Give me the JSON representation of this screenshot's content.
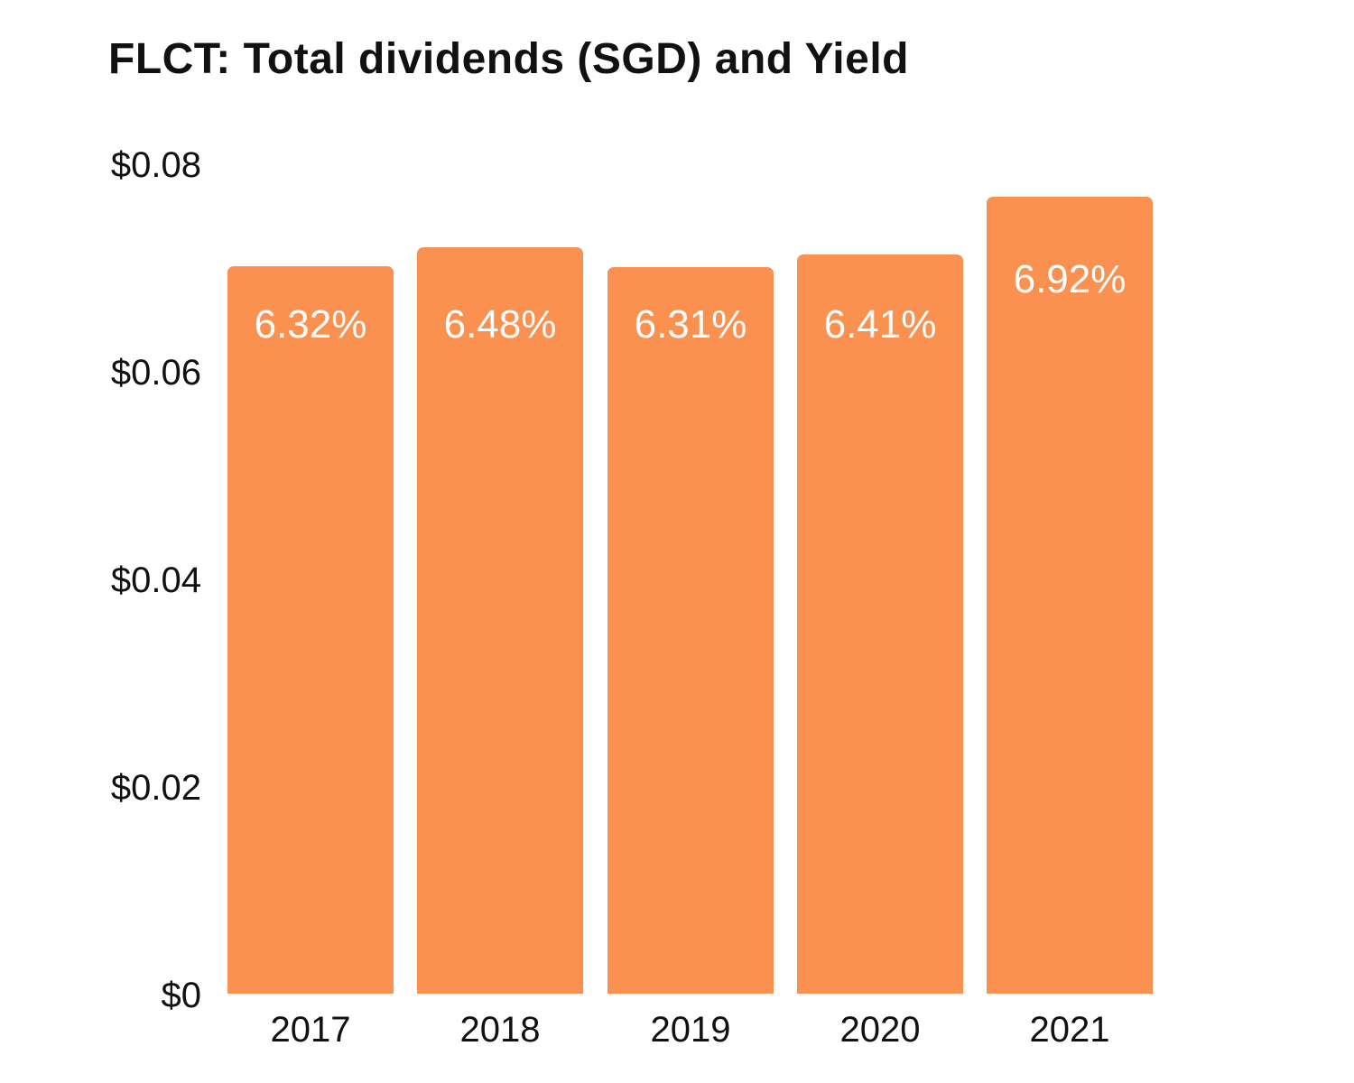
{
  "chart_data": {
    "type": "bar",
    "title": "FLCT: Total dividends (SGD) and Yield",
    "categories": [
      "2017",
      "2018",
      "2019",
      "2020",
      "2021"
    ],
    "series": [
      {
        "name": "Total dividends (SGD)",
        "values": [
          0.0701,
          0.0719,
          0.07,
          0.0712,
          0.0768
        ]
      },
      {
        "name": "Yield (%)",
        "values": [
          6.32,
          6.48,
          6.31,
          6.41,
          6.92
        ]
      }
    ],
    "bar_labels": [
      "6.32%",
      "6.48%",
      "6.31%",
      "6.41%",
      "6.92%"
    ],
    "y_ticks": [
      {
        "label": "$0",
        "value": 0
      },
      {
        "label": "$0.02",
        "value": 0.02
      },
      {
        "label": "$0.04",
        "value": 0.04
      },
      {
        "label": "$0.06",
        "value": 0.06
      },
      {
        "label": "$0.08",
        "value": 0.08
      }
    ],
    "ylim": [
      0,
      0.08
    ],
    "xlabel": "",
    "ylabel": "",
    "grid": false,
    "legend": "none",
    "colors": {
      "bar": "#FA9150",
      "bar_label_text": "#FFFFFF",
      "axis_text": "#111111",
      "title_text": "#111111",
      "background": "#FFFFFF"
    }
  }
}
